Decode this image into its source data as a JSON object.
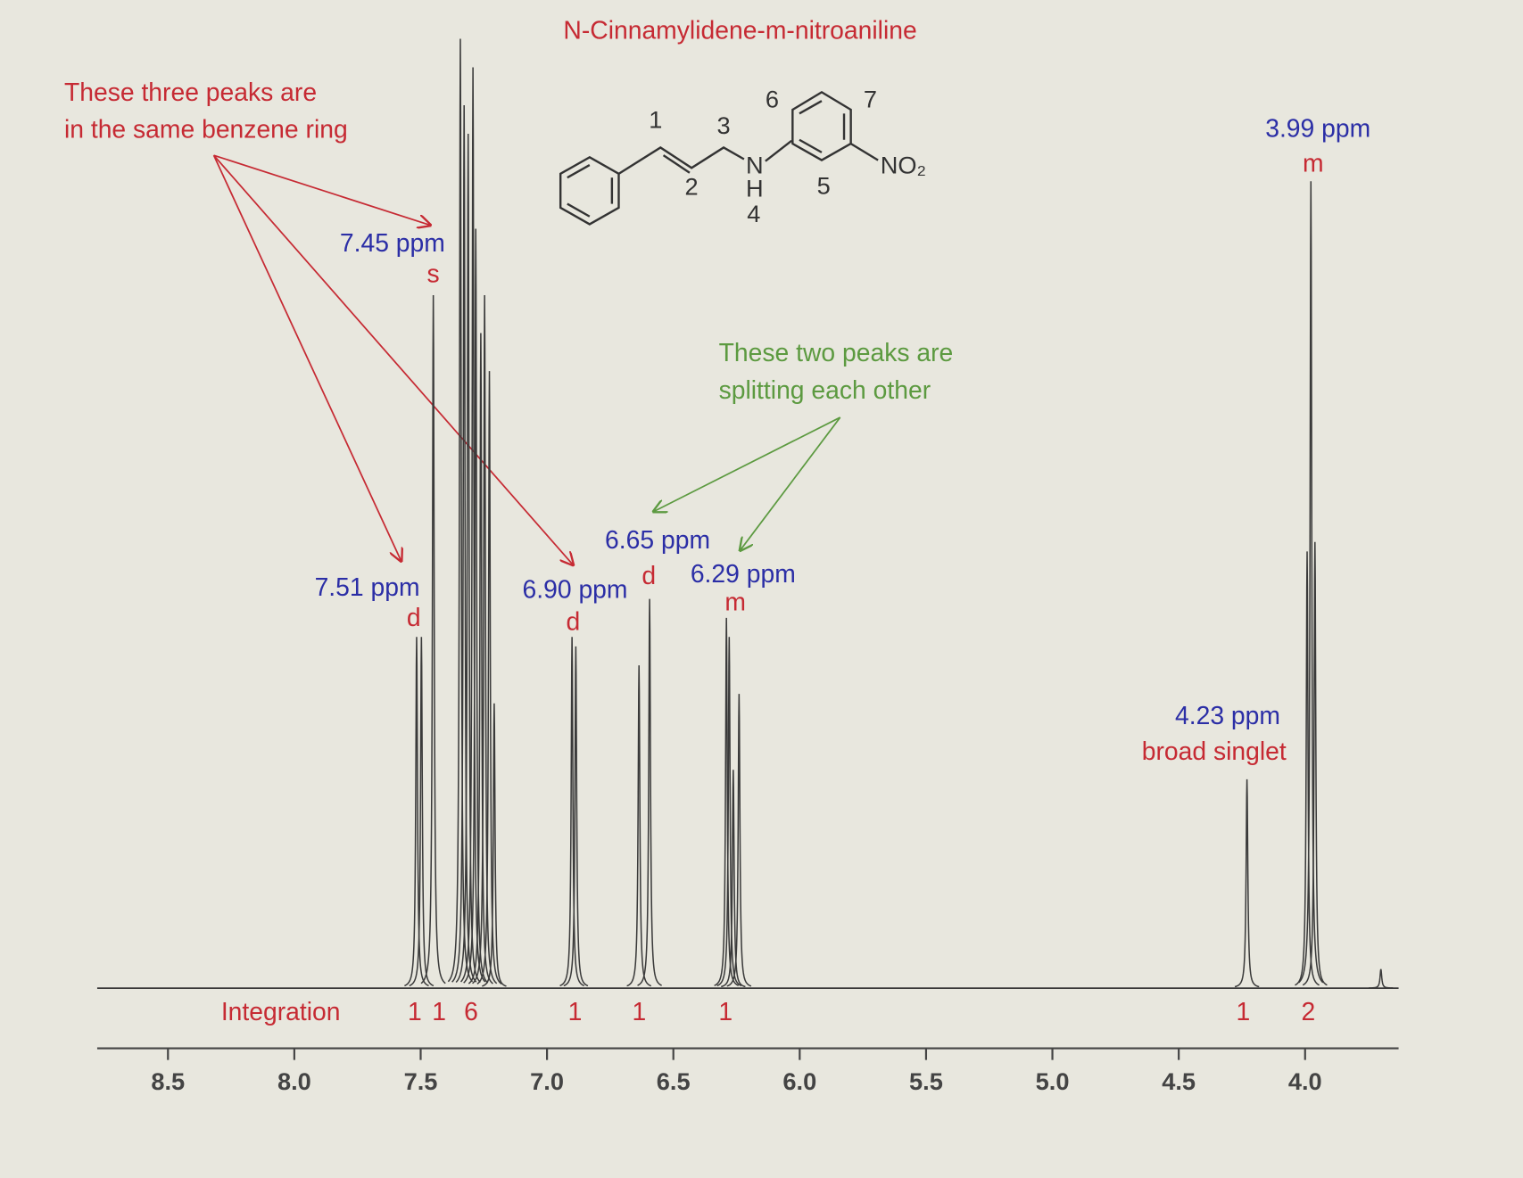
{
  "chart_data": {
    "type": "nmr",
    "title": "N-Cinnamylidene-m-nitroaniline",
    "xlim": [
      8.78,
      3.63
    ],
    "xticks": [
      8.5,
      {
        "value": 8,
        "label": "8.0"
      },
      7.5,
      {
        "value": 7,
        "label": "7.0"
      },
      6.5,
      {
        "value": 6,
        "label": "6.0"
      },
      5.5,
      {
        "value": 5,
        "label": "5.0"
      },
      4.5,
      {
        "value": 4,
        "label": "4.0"
      }
    ],
    "ylim": [
      0,
      100
    ],
    "x": [
      7.516,
      7.497,
      7.45,
      7.343,
      7.328,
      7.312,
      7.293,
      7.282,
      7.262,
      7.247,
      7.228,
      7.209,
      6.901,
      6.886,
      6.636,
      6.594,
      6.29,
      6.279,
      6.263,
      6.24,
      4.23,
      3.992,
      3.977,
      3.961,
      3.7
    ],
    "values": [
      37,
      37,
      73,
      100,
      93,
      90,
      97,
      80,
      69,
      73,
      65,
      30,
      37,
      36,
      34,
      41,
      39,
      37,
      23,
      31,
      22,
      46,
      85,
      47,
      2
    ],
    "color": "#3a3a3a",
    "signals": [
      {
        "shift": {
          "value": 7.51,
          "label": "7.51 ppm"
        },
        "multiplicity": "d"
      },
      {
        "shift": {
          "value": 7.45,
          "label": "7.45 ppm"
        },
        "multiplicity": "s"
      },
      {
        "shift": {
          "value": 6.9,
          "label": "6.90 ppm"
        },
        "multiplicity": "d"
      },
      {
        "shift": {
          "value": 6.65,
          "label": "6.65 ppm"
        },
        "multiplicity": "d"
      },
      {
        "shift": {
          "value": 6.29,
          "label": "6.29 ppm"
        },
        "multiplicity": "m"
      },
      {
        "shift": {
          "value": 4.23,
          "label": "4.23 ppm"
        },
        "multiplicity": "broad singlet"
      },
      {
        "shift": {
          "value": 3.99,
          "label": "3.99 ppm"
        },
        "multiplicity": "m"
      }
    ],
    "integration": {
      "label": "Integration",
      "values": [
        1,
        1,
        6,
        1,
        1,
        1,
        1,
        2
      ]
    },
    "notes": [
      {
        "lines": [
          "These three peaks are",
          "in the same benzene ring"
        ]
      },
      {
        "lines": [
          "These two peaks are",
          "splitting each other"
        ]
      }
    ],
    "structure": {
      "positions": [
        "1",
        "2",
        "3",
        "4",
        "5",
        "6",
        "7"
      ],
      "groups": [
        "N",
        "H",
        "NO₂"
      ]
    }
  }
}
